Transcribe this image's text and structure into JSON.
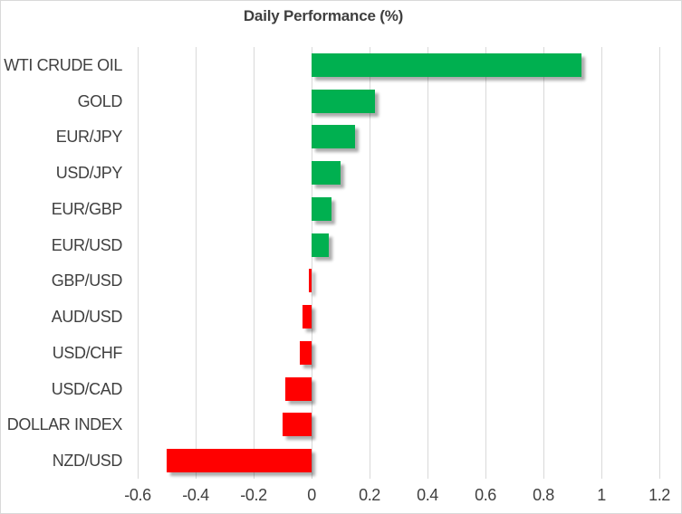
{
  "chart_data": {
    "type": "bar",
    "orientation": "horizontal",
    "title": "Daily Performance (%)",
    "categories": [
      "WTI CRUDE OIL",
      "GOLD",
      "EUR/JPY",
      "USD/JPY",
      "EUR/GBP",
      "EUR/USD",
      "GBP/USD",
      "AUD/USD",
      "USD/CHF",
      "USD/CAD",
      "DOLLAR INDEX",
      "NZD/USD"
    ],
    "values": [
      0.93,
      0.22,
      0.15,
      0.1,
      0.07,
      0.06,
      -0.01,
      -0.03,
      -0.04,
      -0.09,
      -0.1,
      -0.5
    ],
    "xlabel": "",
    "ylabel": "",
    "xlim": [
      -0.6,
      1.2
    ],
    "xtick_step": 0.2,
    "xtick_labels": [
      "-0.6",
      "-0.4",
      "-0.2",
      "0",
      "0.2",
      "0.4",
      "0.6",
      "0.8",
      "1",
      "1.2"
    ],
    "grid": "vertical-only",
    "legend": "none",
    "colors": {
      "positive_bar": "#00B050",
      "negative_bar": "#FF0000",
      "gridline": "#D9D9D9",
      "border": "#D9D9D9",
      "title_text": "#3F3F3F",
      "label_text": "#404040",
      "background": "#FFFFFF"
    }
  }
}
